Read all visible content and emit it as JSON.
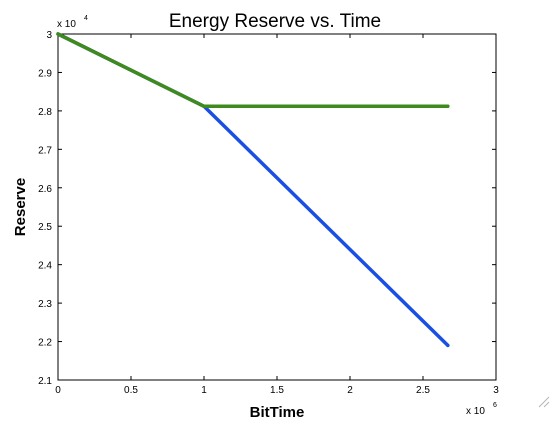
{
  "chart_data": {
    "type": "line",
    "title": "Energy Reserve vs. Time",
    "xlabel": "BitTime",
    "ylabel": "Reserve",
    "x_exponent_label": "x 10",
    "x_exponent_power": "6",
    "y_exponent_label": "x 10",
    "y_exponent_power": "4",
    "xlim": [
      0,
      3
    ],
    "ylim": [
      2.1,
      3.0
    ],
    "x_ticks": [
      0,
      0.5,
      1,
      1.5,
      2,
      2.5,
      3
    ],
    "x_tick_labels": [
      "0",
      "0.5",
      "1",
      "1.5",
      "2",
      "2.5",
      "3"
    ],
    "y_ticks": [
      2.1,
      2.2,
      2.3,
      2.4,
      2.5,
      2.6,
      2.7,
      2.8,
      2.9,
      3.0
    ],
    "y_tick_labels": [
      "2.1",
      "2.2",
      "2.3",
      "2.4",
      "2.5",
      "2.6",
      "2.7",
      "2.8",
      "2.9",
      "3"
    ],
    "grid": false,
    "legend": false,
    "series": [
      {
        "color": "#1a4fe3",
        "x": [
          0,
          1.0,
          2.67
        ],
        "y": [
          3.0,
          2.812,
          2.19
        ]
      },
      {
        "color": "#3f8a1c",
        "x": [
          0,
          1.0,
          2.67
        ],
        "y": [
          3.0,
          2.812,
          2.812
        ]
      }
    ]
  }
}
